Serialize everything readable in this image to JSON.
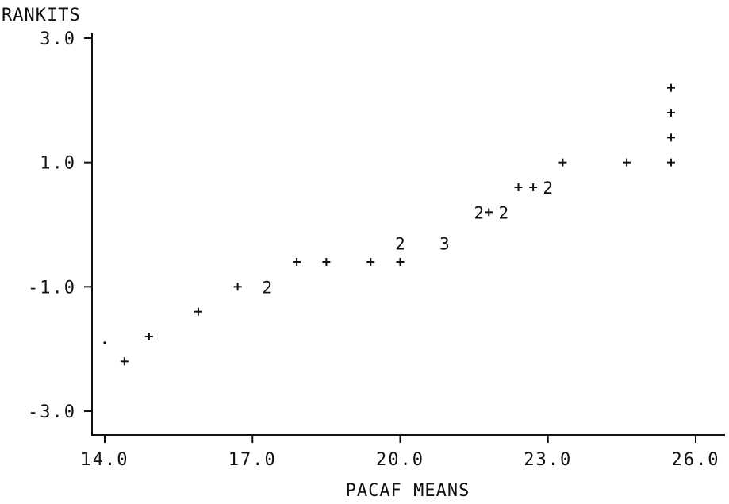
{
  "chart_data": {
    "type": "scatter",
    "title": "",
    "xlabel": "PACAF MEANS",
    "ylabel": "RANKITS",
    "xlim": [
      14.0,
      26.0
    ],
    "ylim": [
      -3.0,
      3.0
    ],
    "x_ticks": [
      "14.0",
      "17.0",
      "20.0",
      "23.0",
      "26.0"
    ],
    "y_ticks": [
      "3.0",
      "1.0",
      "-1.0",
      "-3.0"
    ],
    "x_tick_values": [
      14,
      17,
      20,
      23,
      26
    ],
    "y_tick_values": [
      3,
      1,
      -1,
      -3
    ],
    "grid": false,
    "legend": "none",
    "points": [
      {
        "x": 14.0,
        "y": -1.9,
        "symbol": "."
      },
      {
        "x": 14.4,
        "y": -2.2,
        "symbol": "+"
      },
      {
        "x": 14.9,
        "y": -1.8,
        "symbol": "+"
      },
      {
        "x": 15.9,
        "y": -1.4,
        "symbol": "+"
      },
      {
        "x": 16.7,
        "y": -1.0,
        "symbol": "+"
      },
      {
        "x": 17.3,
        "y": -1.0,
        "symbol": "2"
      },
      {
        "x": 17.9,
        "y": -0.6,
        "symbol": "+"
      },
      {
        "x": 18.5,
        "y": -0.6,
        "symbol": "+"
      },
      {
        "x": 19.4,
        "y": -0.6,
        "symbol": "+"
      },
      {
        "x": 20.0,
        "y": -0.6,
        "symbol": "+"
      },
      {
        "x": 20.0,
        "y": -0.3,
        "symbol": "2"
      },
      {
        "x": 20.9,
        "y": -0.3,
        "symbol": "3"
      },
      {
        "x": 21.6,
        "y": 0.2,
        "symbol": "2"
      },
      {
        "x": 21.8,
        "y": 0.2,
        "symbol": "+"
      },
      {
        "x": 22.1,
        "y": 0.2,
        "symbol": "2"
      },
      {
        "x": 22.4,
        "y": 0.6,
        "symbol": "+"
      },
      {
        "x": 22.7,
        "y": 0.6,
        "symbol": "+"
      },
      {
        "x": 23.0,
        "y": 0.6,
        "symbol": "2"
      },
      {
        "x": 23.3,
        "y": 1.0,
        "symbol": "+"
      },
      {
        "x": 24.6,
        "y": 1.0,
        "symbol": "+"
      },
      {
        "x": 25.5,
        "y": 1.0,
        "symbol": "+"
      },
      {
        "x": 25.5,
        "y": 1.4,
        "symbol": "+"
      },
      {
        "x": 25.5,
        "y": 1.8,
        "symbol": "+"
      },
      {
        "x": 25.5,
        "y": 2.2,
        "symbol": "+"
      }
    ]
  }
}
